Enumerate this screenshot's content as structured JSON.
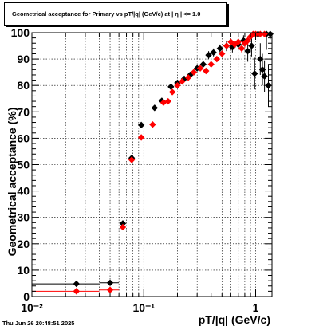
{
  "chart_data": {
    "type": "scatter",
    "title": "Geometrical acceptance for Primary vs pT/|q| (GeV/c) at |  η  | <= 1.0",
    "xlabel": "pT/|q| (GeV/c)",
    "ylabel": "Geometrical acceptance (%)",
    "xscale": "log",
    "xlim": [
      0.01,
      1.4
    ],
    "ylim": [
      0,
      100
    ],
    "grid": true,
    "x_ticks": [
      {
        "value": 0.01,
        "label": "10⁻²"
      },
      {
        "value": 0.1,
        "label": "10⁻¹"
      },
      {
        "value": 1,
        "label": "1"
      }
    ],
    "y_ticks": [
      0,
      10,
      20,
      30,
      40,
      50,
      60,
      70,
      80,
      90,
      100
    ],
    "y_tick_labels": [
      "0",
      "10",
      "20",
      "30",
      "40",
      "50",
      "60",
      "70",
      "80",
      "90",
      "100"
    ],
    "timestamp": "Thu Jun 26 20:48:51 2025",
    "series": [
      {
        "color": "#000000",
        "marker": "diamond",
        "points": [
          {
            "x": 0.025,
            "y": 4.8,
            "xerr": [
              0.01,
              0.04
            ],
            "yerr": 0.5
          },
          {
            "x": 0.05,
            "y": 5.2,
            "xerr": [
              0.04,
              0.06
            ],
            "yerr": 0.5
          },
          {
            "x": 0.065,
            "y": 27.7,
            "yerr": 1.0
          },
          {
            "x": 0.078,
            "y": 52.5,
            "yerr": 1.0
          },
          {
            "x": 0.095,
            "y": 65.0,
            "yerr": 1.0
          },
          {
            "x": 0.125,
            "y": 71.5,
            "yerr": 1.0
          },
          {
            "x": 0.145,
            "y": 74.2,
            "yerr": 1.0
          },
          {
            "x": 0.175,
            "y": 79.5,
            "yerr": 1.0
          },
          {
            "x": 0.2,
            "y": 81.0,
            "yerr": 1.0
          },
          {
            "x": 0.23,
            "y": 82.5,
            "yerr": 1.0
          },
          {
            "x": 0.26,
            "y": 84.0,
            "yerr": 1.0
          },
          {
            "x": 0.3,
            "y": 86.5,
            "yerr": 1.0
          },
          {
            "x": 0.34,
            "y": 88.0,
            "yerr": 1.0
          },
          {
            "x": 0.38,
            "y": 91.5,
            "yerr": 1.5
          },
          {
            "x": 0.42,
            "y": 92.5,
            "yerr": 1.5
          },
          {
            "x": 0.48,
            "y": 94.0,
            "yerr": 1.5
          },
          {
            "x": 0.55,
            "y": 95.0,
            "yerr": 2.0
          },
          {
            "x": 0.62,
            "y": 94.5,
            "yerr": 2.0
          },
          {
            "x": 0.7,
            "y": 95.5,
            "yerr": 2.0
          },
          {
            "x": 0.78,
            "y": 97.0,
            "yerr": 2.0
          },
          {
            "x": 0.85,
            "y": 93.0,
            "yerr": 4.0
          },
          {
            "x": 0.92,
            "y": 95.0,
            "yerr": 4.0
          },
          {
            "x": 0.98,
            "y": 84.5,
            "yerr": 6.0
          },
          {
            "x": 1.05,
            "y": 99.5,
            "yerr": 3.0
          },
          {
            "x": 1.1,
            "y": 90.0,
            "yerr": 6.0
          },
          {
            "x": 1.15,
            "y": 86.0,
            "yerr": 6.0
          },
          {
            "x": 1.2,
            "y": 83.5,
            "yerr": 6.0
          },
          {
            "x": 1.25,
            "y": 99.5,
            "yerr": 6.0
          },
          {
            "x": 1.3,
            "y": 80.0,
            "yerr": 8.0
          },
          {
            "x": 1.35,
            "y": 99.5,
            "yerr": 2.0
          }
        ]
      },
      {
        "color": "#ff0000",
        "marker": "diamond",
        "points": [
          {
            "x": 0.025,
            "y": 2.0,
            "xerr": [
              0.01,
              0.04
            ],
            "yerr": 0.5
          },
          {
            "x": 0.05,
            "y": 2.5,
            "xerr": [
              0.04,
              0.06
            ],
            "yerr": 0.5
          },
          {
            "x": 0.065,
            "y": 26.3,
            "yerr": 1.0
          },
          {
            "x": 0.078,
            "y": 51.8,
            "yerr": 1.0
          },
          {
            "x": 0.095,
            "y": 60.3,
            "yerr": 1.0
          },
          {
            "x": 0.12,
            "y": 65.2,
            "yerr": 1.0
          },
          {
            "x": 0.15,
            "y": 73.5,
            "yerr": 1.0
          },
          {
            "x": 0.165,
            "y": 74.0,
            "yerr": 1.0
          },
          {
            "x": 0.18,
            "y": 77.5,
            "yerr": 1.0
          },
          {
            "x": 0.2,
            "y": 80.0,
            "yerr": 1.0
          },
          {
            "x": 0.22,
            "y": 81.5,
            "yerr": 1.0
          },
          {
            "x": 0.25,
            "y": 83.0,
            "yerr": 1.0
          },
          {
            "x": 0.28,
            "y": 85.0,
            "yerr": 1.0
          },
          {
            "x": 0.32,
            "y": 86.5,
            "yerr": 1.0
          },
          {
            "x": 0.36,
            "y": 85.5,
            "yerr": 1.0
          },
          {
            "x": 0.4,
            "y": 88.0,
            "yerr": 1.0
          },
          {
            "x": 0.45,
            "y": 90.0,
            "yerr": 1.0
          },
          {
            "x": 0.5,
            "y": 92.0,
            "yerr": 1.0
          },
          {
            "x": 0.55,
            "y": 95.0,
            "yerr": 1.0
          },
          {
            "x": 0.6,
            "y": 96.5,
            "yerr": 1.0
          },
          {
            "x": 0.65,
            "y": 95.5,
            "yerr": 1.0
          },
          {
            "x": 0.7,
            "y": 96.5,
            "yerr": 1.0
          },
          {
            "x": 0.75,
            "y": 94.0,
            "yerr": 1.5
          },
          {
            "x": 0.8,
            "y": 96.0,
            "yerr": 1.5
          },
          {
            "x": 0.85,
            "y": 97.0,
            "yerr": 1.5
          },
          {
            "x": 0.9,
            "y": 98.5,
            "yerr": 1.0
          },
          {
            "x": 0.95,
            "y": 99.5,
            "yerr": 1.0
          },
          {
            "x": 1.0,
            "y": 99.5,
            "yerr": 1.0
          },
          {
            "x": 1.1,
            "y": 99.5,
            "yerr": 1.0
          },
          {
            "x": 1.2,
            "y": 99.5,
            "yerr": 1.0
          }
        ]
      }
    ]
  }
}
